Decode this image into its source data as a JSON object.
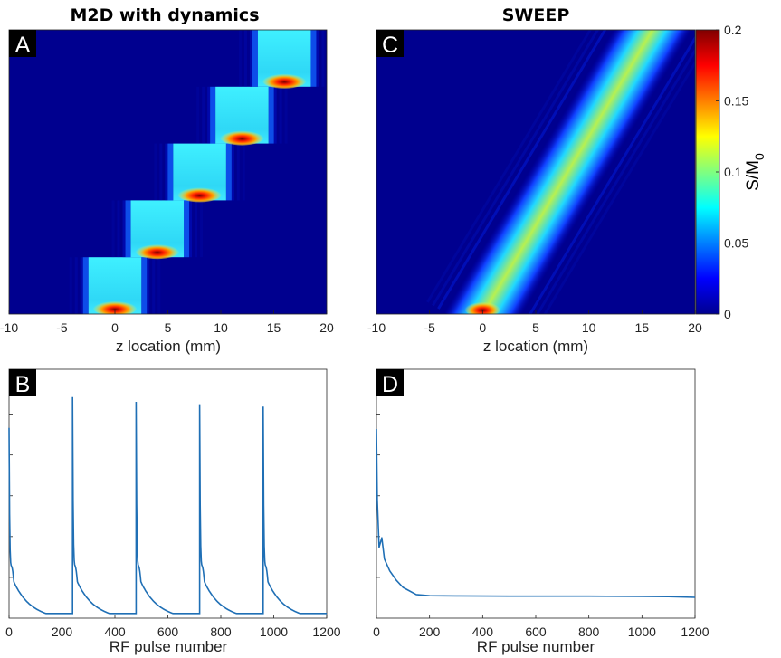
{
  "chart_data": [
    {
      "panel": "A",
      "type": "heatmap",
      "title": "M2D with dynamics",
      "xlabel": "z location (mm)",
      "ylabel": "",
      "xlim": [
        -10,
        20
      ],
      "x_ticks": [
        -10,
        -5,
        0,
        5,
        10,
        15,
        20
      ],
      "slabs": [
        {
          "index": 1,
          "center_mm": 0,
          "width_mm": 5
        },
        {
          "index": 2,
          "center_mm": 4,
          "width_mm": 5
        },
        {
          "index": 3,
          "center_mm": 8,
          "width_mm": 5
        },
        {
          "index": 4,
          "center_mm": 12,
          "width_mm": 5
        },
        {
          "index": 5,
          "center_mm": 16,
          "width_mm": 5
        }
      ]
    },
    {
      "panel": "C",
      "type": "heatmap",
      "title": "SWEEP",
      "xlabel": "z location (mm)",
      "ylabel": "",
      "xlim": [
        -10,
        20
      ],
      "x_ticks": [
        -10,
        -5,
        0,
        5,
        10,
        15,
        20
      ],
      "band": {
        "start_center_mm": 0,
        "end_center_mm": 16,
        "width_mm": 4
      }
    },
    {
      "panel": "colorbar",
      "type": "colorbar",
      "label": "S/M",
      "label_sub": "0",
      "range": [
        0,
        0.2
      ],
      "ticks": [
        "0",
        "0.05",
        "0.1",
        "0.15",
        "0.2"
      ]
    },
    {
      "panel": "B",
      "type": "line",
      "xlabel": "RF pulse number",
      "xlim": [
        0,
        1200
      ],
      "x_ticks": [
        0,
        200,
        400,
        600,
        800,
        1000,
        1200
      ],
      "ylim": [
        0,
        1
      ],
      "pulse_starts": [
        0,
        240,
        480,
        720,
        960
      ],
      "series": [
        {
          "name": "signal",
          "peaks": [
            0.8,
            0.93,
            0.91,
            0.9,
            0.89
          ],
          "trough": 0.04,
          "asymptote": 0.015
        }
      ]
    },
    {
      "panel": "D",
      "type": "line",
      "xlabel": "RF pulse number",
      "xlim": [
        0,
        1200
      ],
      "x_ticks": [
        0,
        200,
        400,
        600,
        800,
        1000,
        1200
      ],
      "ylim": [
        0,
        1
      ],
      "series": [
        {
          "name": "signal",
          "x": [
            0,
            3,
            10,
            20,
            30,
            50,
            75,
            100,
            150,
            200,
            300,
            500,
            800,
            1000,
            1100,
            1200
          ],
          "y": [
            0.8,
            0.5,
            0.3,
            0.34,
            0.25,
            0.2,
            0.16,
            0.13,
            0.1,
            0.095,
            0.094,
            0.093,
            0.093,
            0.092,
            0.091,
            0.088
          ]
        }
      ]
    }
  ],
  "panel_labels": [
    "A",
    "B",
    "C",
    "D"
  ],
  "colors": {
    "line": "#1f6fb5",
    "background": "#ffffff"
  }
}
